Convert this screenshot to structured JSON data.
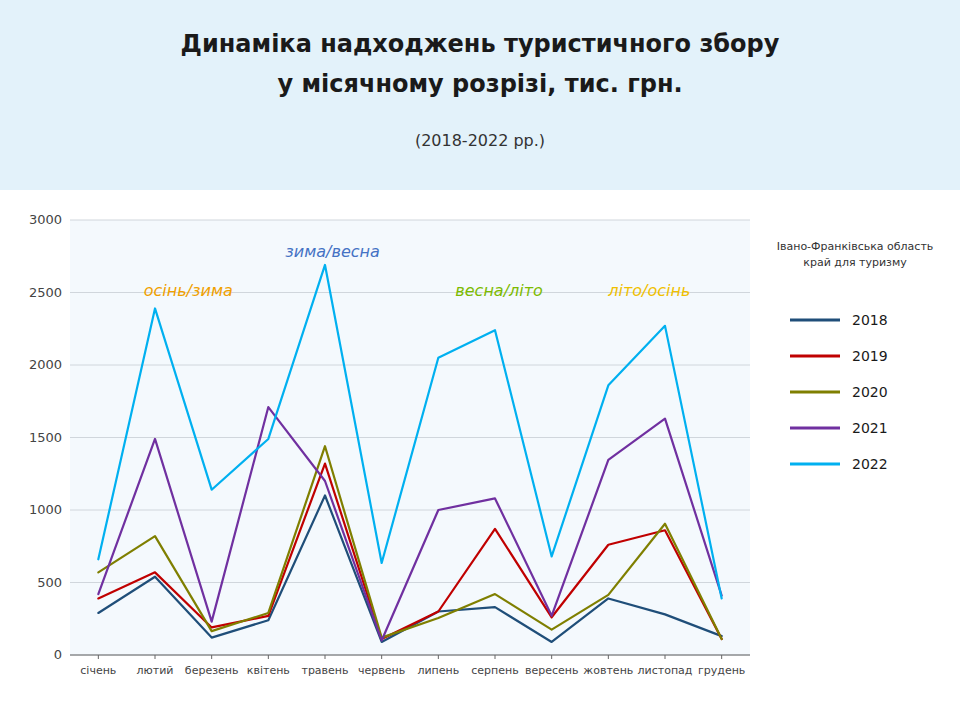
{
  "chart_data": {
    "type": "line",
    "title": [
      "Динаміка надходжень туристичного збору",
      "у місячному розрізі, тис. грн."
    ],
    "subtitle": "(2018-2022 рр.)",
    "caption": [
      "Івано-Франківська область",
      "край для туризму"
    ],
    "categories": [
      "січень",
      "лютий",
      "березень",
      "квітень",
      "травень",
      "червень",
      "липень",
      "серпень",
      "вересень",
      "жовтень",
      "листопад",
      "грудень"
    ],
    "series": [
      {
        "name": "2018",
        "color": "#1f4e79",
        "values": [
          290,
          540,
          120,
          240,
          1100,
          90,
          300,
          330,
          90,
          390,
          280,
          130
        ]
      },
      {
        "name": "2019",
        "color": "#c00000",
        "values": [
          390,
          570,
          190,
          270,
          1320,
          110,
          300,
          870,
          260,
          760,
          860,
          110
        ]
      },
      {
        "name": "2020",
        "color": "#7f7f00",
        "values": [
          570,
          820,
          165,
          290,
          1440,
          120,
          255,
          420,
          175,
          415,
          905,
          110
        ]
      },
      {
        "name": "2021",
        "color": "#7030a0",
        "values": [
          420,
          1490,
          230,
          1710,
          1200,
          100,
          1000,
          1080,
          270,
          1345,
          1630,
          410
        ]
      },
      {
        "name": "2022",
        "color": "#00b0f0",
        "values": [
          660,
          2390,
          1140,
          1490,
          2690,
          635,
          2050,
          2240,
          680,
          1860,
          2270,
          390
        ]
      }
    ],
    "annotations": [
      {
        "text": "осінь/зима",
        "x": 0.8,
        "y": 2560,
        "color": "#f0a000"
      },
      {
        "text": "зима/весна",
        "x": 3.3,
        "y": 2830,
        "color": "#4472c4"
      },
      {
        "text": "весна/літо",
        "x": 6.3,
        "y": 2560,
        "color": "#7dbb00"
      },
      {
        "text": "літо/осінь",
        "x": 9.0,
        "y": 2560,
        "color": "#f0c000"
      }
    ],
    "ylim": [
      0,
      3000
    ],
    "yticks": [
      0,
      500,
      1000,
      1500,
      2000,
      2500,
      3000
    ],
    "grid": true,
    "legend": "right"
  }
}
